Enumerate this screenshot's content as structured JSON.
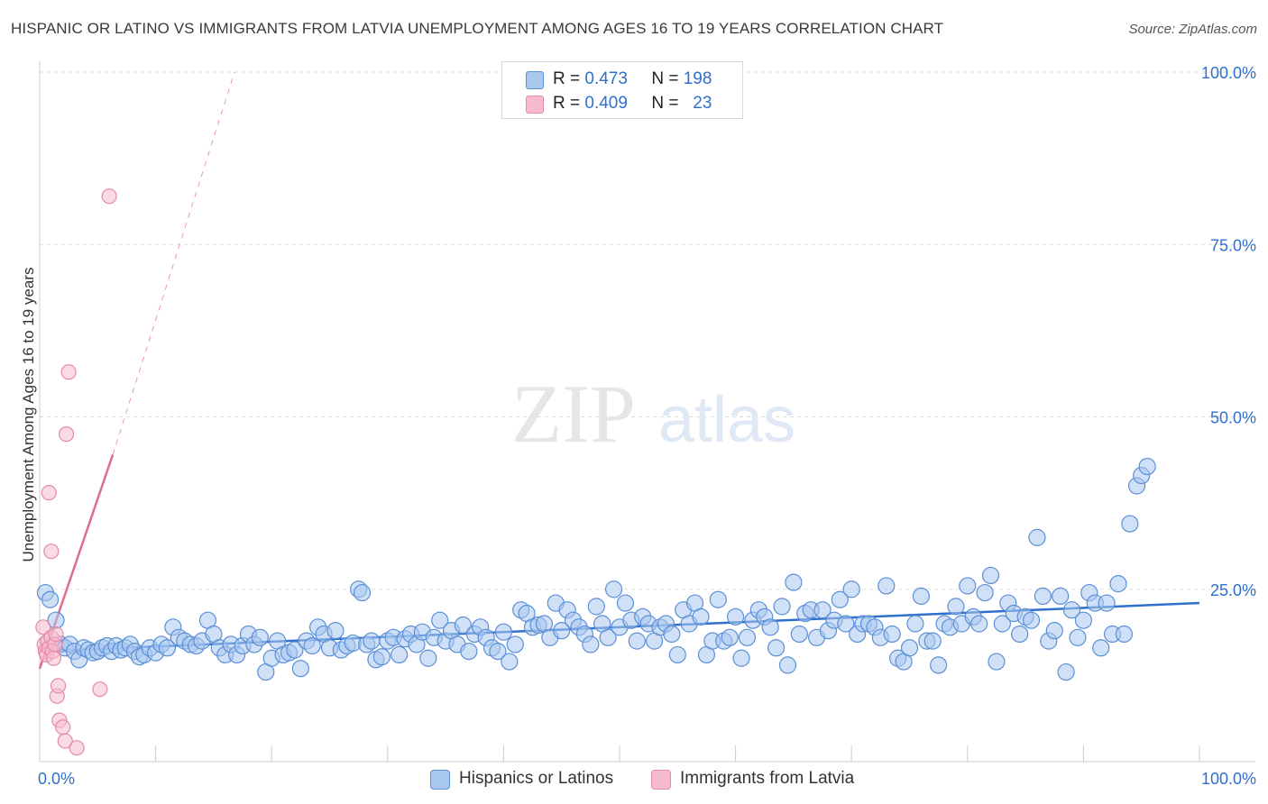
{
  "title": "HISPANIC OR LATINO VS IMMIGRANTS FROM LATVIA UNEMPLOYMENT AMONG AGES 16 TO 19 YEARS CORRELATION CHART",
  "source": "Source: ZipAtlas.com",
  "watermark": {
    "zip": "ZIP",
    "atlas": "atlas"
  },
  "legend": {
    "rows": [
      {
        "r_label": "R =",
        "r_value": "0.473",
        "n_label": "N =",
        "n_value": "198"
      },
      {
        "r_label": "R =",
        "r_value": "0.409",
        "n_label": "N =",
        "n_value": "23"
      }
    ]
  },
  "colors": {
    "blue_fill": "#a9c8f0",
    "blue_stroke": "#5b8fd6",
    "blue_line": "#2f6fce",
    "pink_fill": "#f6bccd",
    "pink_stroke": "#e58aa8",
    "pink_line": "#e06b95",
    "tick_label": "#2f6fce",
    "grid": "#dddddd"
  },
  "chart_data": {
    "type": "scatter",
    "title": "HISPANIC OR LATINO VS IMMIGRANTS FROM LATVIA UNEMPLOYMENT AMONG AGES 16 TO 19 YEARS CORRELATION CHART",
    "xlabel": "",
    "ylabel": "Unemployment Among Ages 16 to 19 years",
    "xlim": [
      0,
      100
    ],
    "ylim": [
      0,
      100
    ],
    "x_tick_labels": [
      "0.0%",
      "100.0%"
    ],
    "y_tick_labels": [
      "25.0%",
      "50.0%",
      "75.0%",
      "100.0%"
    ],
    "y_ticks": [
      25,
      50,
      75,
      100
    ],
    "grid": true,
    "legend_position": "bottom",
    "series": [
      {
        "name": "Hispanics or Latinos",
        "color": "#a9c8f0",
        "r": 0.473,
        "n": 198,
        "trend": {
          "x": [
            0,
            100
          ],
          "y": [
            16.0,
            23.0
          ]
        },
        "points": [
          [
            0.5,
            24.5
          ],
          [
            0.9,
            23.5
          ],
          [
            1.4,
            20.5
          ],
          [
            1.8,
            17.0
          ],
          [
            2.2,
            16.5
          ],
          [
            2.6,
            17.0
          ],
          [
            3.0,
            16.0
          ],
          [
            3.4,
            14.8
          ],
          [
            3.8,
            16.5
          ],
          [
            4.2,
            16.2
          ],
          [
            4.6,
            15.8
          ],
          [
            5.0,
            16.0
          ],
          [
            5.4,
            16.5
          ],
          [
            5.8,
            16.8
          ],
          [
            6.2,
            16.0
          ],
          [
            6.6,
            16.8
          ],
          [
            7.0,
            16.2
          ],
          [
            7.4,
            16.5
          ],
          [
            7.8,
            17.0
          ],
          [
            8.2,
            16.0
          ],
          [
            8.6,
            15.2
          ],
          [
            9.0,
            15.5
          ],
          [
            9.5,
            16.5
          ],
          [
            10.0,
            15.8
          ],
          [
            10.5,
            17.0
          ],
          [
            11.0,
            16.5
          ],
          [
            11.5,
            19.5
          ],
          [
            12.0,
            18.0
          ],
          [
            12.5,
            17.5
          ],
          [
            13.0,
            17.0
          ],
          [
            13.5,
            16.8
          ],
          [
            14.0,
            17.5
          ],
          [
            14.5,
            20.5
          ],
          [
            15.0,
            18.5
          ],
          [
            15.5,
            16.5
          ],
          [
            16.0,
            15.5
          ],
          [
            16.5,
            17.0
          ],
          [
            17.0,
            15.5
          ],
          [
            17.5,
            16.8
          ],
          [
            18.0,
            18.5
          ],
          [
            18.5,
            17.0
          ],
          [
            19.0,
            18.0
          ],
          [
            19.5,
            13.0
          ],
          [
            20.0,
            15.0
          ],
          [
            20.5,
            17.5
          ],
          [
            21.0,
            15.5
          ],
          [
            21.5,
            15.8
          ],
          [
            22.0,
            16.2
          ],
          [
            22.5,
            13.5
          ],
          [
            23.0,
            17.5
          ],
          [
            23.5,
            16.8
          ],
          [
            24.0,
            19.5
          ],
          [
            24.5,
            18.5
          ],
          [
            25.0,
            16.5
          ],
          [
            25.5,
            19.0
          ],
          [
            26.0,
            16.2
          ],
          [
            26.5,
            16.8
          ],
          [
            27.0,
            17.2
          ],
          [
            27.5,
            25.0
          ],
          [
            27.8,
            24.5
          ],
          [
            28.2,
            17.0
          ],
          [
            28.6,
            17.5
          ],
          [
            29.0,
            14.8
          ],
          [
            29.5,
            15.2
          ],
          [
            30.0,
            17.5
          ],
          [
            30.5,
            18.0
          ],
          [
            31.0,
            15.5
          ],
          [
            31.5,
            17.8
          ],
          [
            32.0,
            18.5
          ],
          [
            32.5,
            17.0
          ],
          [
            33.0,
            18.8
          ],
          [
            33.5,
            15.0
          ],
          [
            34.0,
            18.0
          ],
          [
            34.5,
            20.5
          ],
          [
            35.0,
            17.5
          ],
          [
            35.5,
            19.0
          ],
          [
            36.0,
            17.0
          ],
          [
            36.5,
            19.8
          ],
          [
            37.0,
            16.0
          ],
          [
            37.5,
            18.5
          ],
          [
            38.0,
            19.5
          ],
          [
            38.5,
            18.0
          ],
          [
            39.0,
            16.5
          ],
          [
            39.5,
            16.0
          ],
          [
            40.0,
            18.8
          ],
          [
            40.5,
            14.5
          ],
          [
            41.0,
            17.0
          ],
          [
            41.5,
            22.0
          ],
          [
            42.0,
            21.5
          ],
          [
            42.5,
            19.5
          ],
          [
            43.0,
            19.8
          ],
          [
            43.5,
            20.0
          ],
          [
            44.0,
            18.0
          ],
          [
            44.5,
            23.0
          ],
          [
            45.0,
            19.0
          ],
          [
            45.5,
            22.0
          ],
          [
            46.0,
            20.5
          ],
          [
            46.5,
            19.5
          ],
          [
            47.0,
            18.5
          ],
          [
            47.5,
            17.0
          ],
          [
            48.0,
            22.5
          ],
          [
            48.5,
            20.0
          ],
          [
            49.0,
            18.0
          ],
          [
            49.5,
            25.0
          ],
          [
            50.0,
            19.5
          ],
          [
            50.5,
            23.0
          ],
          [
            51.0,
            20.5
          ],
          [
            51.5,
            17.5
          ],
          [
            52.0,
            21.0
          ],
          [
            52.5,
            20.0
          ],
          [
            53.0,
            17.5
          ],
          [
            53.5,
            19.5
          ],
          [
            54.0,
            20.0
          ],
          [
            54.5,
            18.5
          ],
          [
            55.0,
            15.5
          ],
          [
            55.5,
            22.0
          ],
          [
            56.0,
            20.0
          ],
          [
            56.5,
            23.0
          ],
          [
            57.0,
            21.0
          ],
          [
            57.5,
            15.5
          ],
          [
            58.0,
            17.5
          ],
          [
            58.5,
            23.5
          ],
          [
            59.0,
            17.5
          ],
          [
            59.5,
            18.0
          ],
          [
            60.0,
            21.0
          ],
          [
            60.5,
            15.0
          ],
          [
            61.0,
            18.0
          ],
          [
            61.5,
            20.5
          ],
          [
            62.0,
            22.0
          ],
          [
            62.5,
            21.0
          ],
          [
            63.0,
            19.5
          ],
          [
            63.5,
            16.5
          ],
          [
            64.0,
            22.5
          ],
          [
            64.5,
            14.0
          ],
          [
            65.0,
            26.0
          ],
          [
            65.5,
            18.5
          ],
          [
            66.0,
            21.5
          ],
          [
            66.5,
            22.0
          ],
          [
            67.0,
            18.0
          ],
          [
            67.5,
            22.0
          ],
          [
            68.0,
            19.0
          ],
          [
            68.5,
            20.5
          ],
          [
            69.0,
            23.5
          ],
          [
            69.5,
            20.0
          ],
          [
            70.0,
            25.0
          ],
          [
            70.5,
            18.5
          ],
          [
            71.0,
            20.0
          ],
          [
            71.5,
            20.0
          ],
          [
            72.0,
            19.5
          ],
          [
            72.5,
            18.0
          ],
          [
            73.0,
            25.5
          ],
          [
            73.5,
            18.5
          ],
          [
            74.0,
            15.0
          ],
          [
            74.5,
            14.5
          ],
          [
            75.0,
            16.5
          ],
          [
            75.5,
            20.0
          ],
          [
            76.0,
            24.0
          ],
          [
            76.5,
            17.5
          ],
          [
            77.0,
            17.5
          ],
          [
            77.5,
            14.0
          ],
          [
            78.0,
            20.0
          ],
          [
            78.5,
            19.5
          ],
          [
            79.0,
            22.5
          ],
          [
            79.5,
            20.0
          ],
          [
            80.0,
            25.5
          ],
          [
            80.5,
            21.0
          ],
          [
            81.0,
            20.0
          ],
          [
            81.5,
            24.5
          ],
          [
            82.0,
            27.0
          ],
          [
            82.5,
            14.5
          ],
          [
            83.0,
            20.0
          ],
          [
            83.5,
            23.0
          ],
          [
            84.0,
            21.5
          ],
          [
            84.5,
            18.5
          ],
          [
            85.0,
            21.0
          ],
          [
            85.5,
            20.5
          ],
          [
            86.0,
            32.5
          ],
          [
            86.5,
            24.0
          ],
          [
            87.0,
            17.5
          ],
          [
            87.5,
            19.0
          ],
          [
            88.0,
            24.0
          ],
          [
            88.5,
            13.0
          ],
          [
            89.0,
            22.0
          ],
          [
            89.5,
            18.0
          ],
          [
            90.0,
            20.5
          ],
          [
            90.5,
            24.5
          ],
          [
            91.0,
            23.0
          ],
          [
            91.5,
            16.5
          ],
          [
            92.0,
            23.0
          ],
          [
            92.5,
            18.5
          ],
          [
            93.0,
            25.8
          ],
          [
            93.5,
            18.5
          ],
          [
            94.0,
            34.5
          ],
          [
            94.6,
            40.0
          ],
          [
            95.0,
            41.5
          ],
          [
            95.5,
            42.8
          ]
        ]
      },
      {
        "name": "Immigrants from Latvia",
        "color": "#f6bccd",
        "r": 0.409,
        "n": 23,
        "trend": {
          "x": [
            0,
            6.3
          ],
          "y": [
            13.5,
            44.5
          ]
        },
        "trend_dashed": {
          "x": [
            6.3,
            16.8
          ],
          "y": [
            44.5,
            100.0
          ]
        },
        "points": [
          [
            0.3,
            19.5
          ],
          [
            0.4,
            17.0
          ],
          [
            0.5,
            16.0
          ],
          [
            0.6,
            15.5
          ],
          [
            0.7,
            17.5
          ],
          [
            0.8,
            16.5
          ],
          [
            1.0,
            18.0
          ],
          [
            1.1,
            16.0
          ],
          [
            1.2,
            15.0
          ],
          [
            1.3,
            17.0
          ],
          [
            1.4,
            18.5
          ],
          [
            0.8,
            39.0
          ],
          [
            1.0,
            30.5
          ],
          [
            1.5,
            9.5
          ],
          [
            1.6,
            11.0
          ],
          [
            1.7,
            6.0
          ],
          [
            2.0,
            5.0
          ],
          [
            2.2,
            3.0
          ],
          [
            2.3,
            47.5
          ],
          [
            2.5,
            56.5
          ],
          [
            3.2,
            2.0
          ],
          [
            5.2,
            10.5
          ],
          [
            6.0,
            82.0
          ]
        ]
      }
    ]
  },
  "bottom_legend": [
    {
      "label": "Hispanics or Latinos"
    },
    {
      "label": "Immigrants from Latvia"
    }
  ]
}
